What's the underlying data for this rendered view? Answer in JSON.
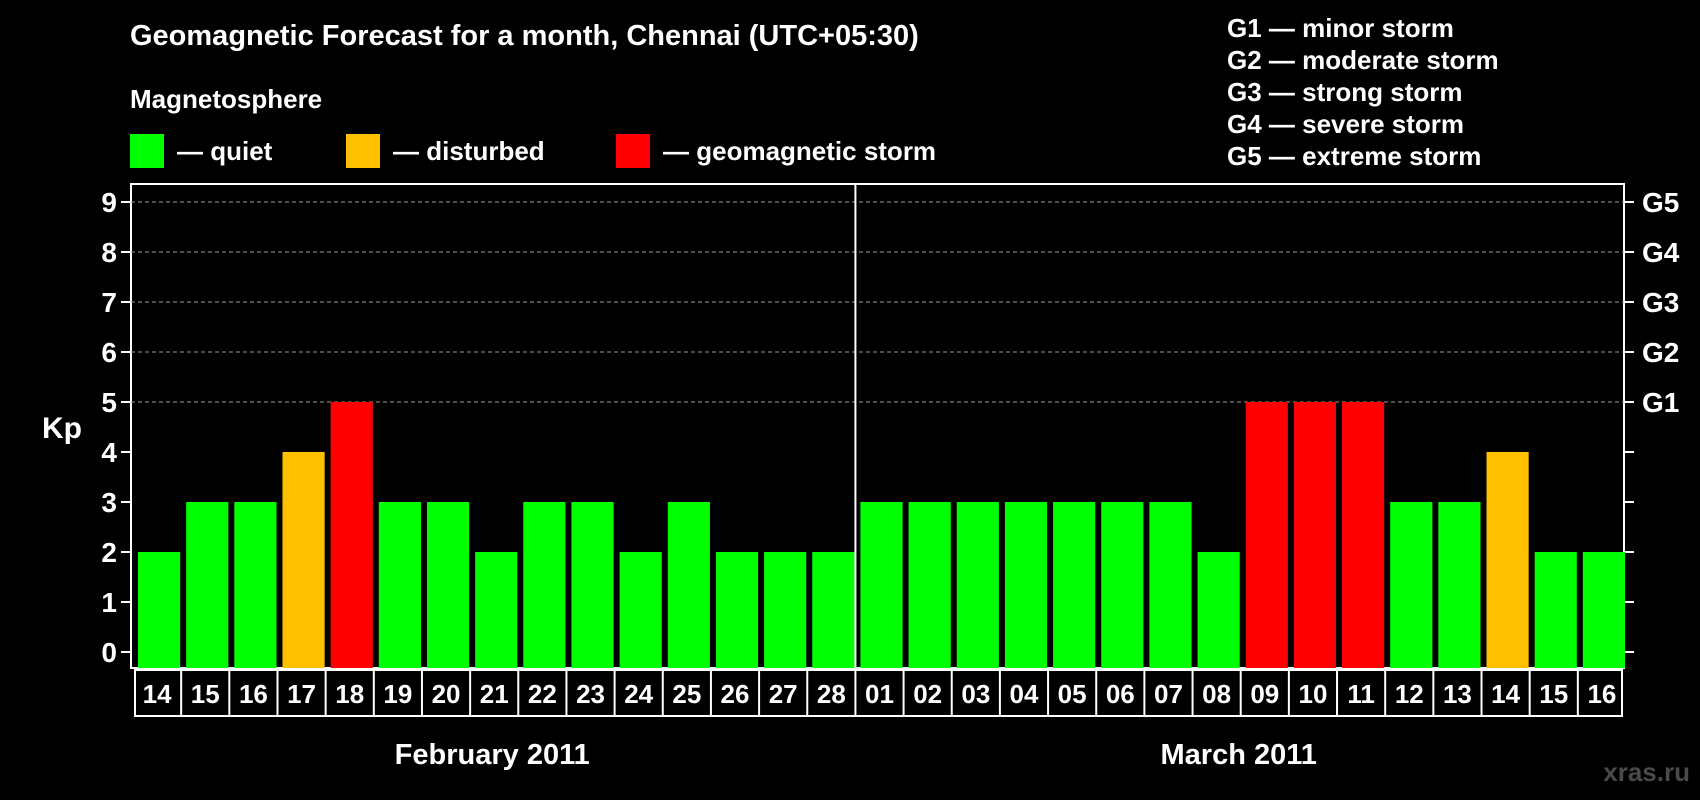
{
  "header": {
    "title": "Geomagnetic Forecast for a month, Chennai (UTC+05:30)",
    "subtitle": "Magnetosphere"
  },
  "legend": {
    "quiet": {
      "label": "— quiet",
      "color": "#00ff00"
    },
    "disturbed": {
      "label": "— disturbed",
      "color": "#ffc000"
    },
    "storm": {
      "label": "— geomagnetic storm",
      "color": "#ff0000"
    }
  },
  "g_legend": [
    "G1 — minor storm",
    "G2 — moderate storm",
    "G3 — strong storm",
    "G4 — severe storm",
    "G5 — extreme storm"
  ],
  "watermark": "xras.ru",
  "chart_data": {
    "type": "bar",
    "ylabel": "Kp",
    "ylim": [
      0,
      9
    ],
    "yticks": [
      "0",
      "1",
      "2",
      "3",
      "4",
      "5",
      "6",
      "7",
      "8",
      "9"
    ],
    "right_ticks": [
      {
        "value": 5,
        "label": "G1"
      },
      {
        "value": 6,
        "label": "G2"
      },
      {
        "value": 7,
        "label": "G3"
      },
      {
        "value": 8,
        "label": "G4"
      },
      {
        "value": 9,
        "label": "G5"
      }
    ],
    "grid": "dashed horizontal at 5-9",
    "categories": [
      "14",
      "15",
      "16",
      "17",
      "18",
      "19",
      "20",
      "21",
      "22",
      "23",
      "24",
      "25",
      "26",
      "27",
      "28",
      "01",
      "02",
      "03",
      "04",
      "05",
      "06",
      "07",
      "08",
      "09",
      "10",
      "11",
      "12",
      "13",
      "14",
      "15",
      "16"
    ],
    "values": [
      2,
      3,
      3,
      4,
      5,
      3,
      3,
      2,
      3,
      3,
      2,
      3,
      2,
      2,
      2,
      3,
      3,
      3,
      3,
      3,
      3,
      3,
      2,
      5,
      5,
      5,
      3,
      3,
      4,
      2,
      2
    ],
    "status": [
      "quiet",
      "quiet",
      "quiet",
      "disturbed",
      "storm",
      "quiet",
      "quiet",
      "quiet",
      "quiet",
      "quiet",
      "quiet",
      "quiet",
      "quiet",
      "quiet",
      "quiet",
      "quiet",
      "quiet",
      "quiet",
      "quiet",
      "quiet",
      "quiet",
      "quiet",
      "quiet",
      "storm",
      "storm",
      "storm",
      "quiet",
      "quiet",
      "disturbed",
      "quiet",
      "quiet"
    ],
    "months": [
      {
        "label": "February 2011",
        "count": 15
      },
      {
        "label": "March 2011",
        "count": 16
      }
    ]
  }
}
